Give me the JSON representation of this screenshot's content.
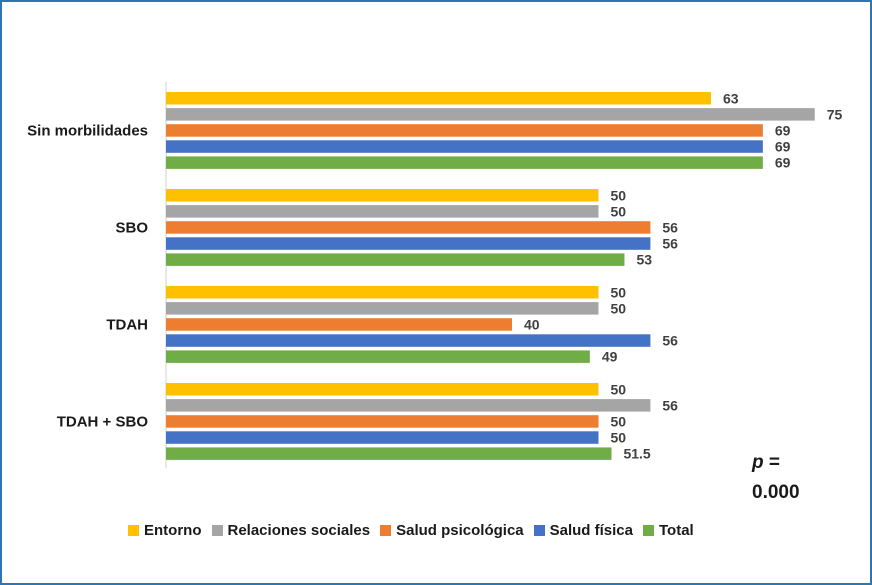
{
  "chart_data": {
    "type": "bar",
    "orientation": "horizontal",
    "title": "",
    "xlabel": "",
    "ylabel": "",
    "xlim": [
      0,
      80
    ],
    "grid": false,
    "legend_position": "bottom",
    "categories": [
      "Sin morbilidades",
      "SBO",
      "TDAH",
      "TDAH + SBO"
    ],
    "series": [
      {
        "name": "Entorno",
        "color": "#ffc000",
        "values": [
          63,
          50,
          50,
          50
        ],
        "labels": [
          "63",
          "50",
          "50",
          "50"
        ]
      },
      {
        "name": "Relaciones sociales",
        "color": "#a5a5a5",
        "values": [
          75,
          50,
          50,
          56
        ],
        "labels": [
          "75",
          "50",
          "50",
          "56"
        ]
      },
      {
        "name": "Salud psicológica",
        "color": "#ed7d31",
        "values": [
          69,
          56,
          40,
          50
        ],
        "labels": [
          "69",
          "56",
          "40",
          "50"
        ]
      },
      {
        "name": "Salud física",
        "color": "#4472c4",
        "values": [
          69,
          56,
          56,
          50
        ],
        "labels": [
          "69",
          "56",
          "56",
          "50"
        ]
      },
      {
        "name": "Total",
        "color": "#70ad47",
        "values": [
          69,
          53,
          49,
          51.5
        ],
        "labels": [
          "69",
          "53",
          "49",
          "51.5"
        ]
      }
    ]
  },
  "annotation": {
    "p_symbol": "p",
    "equals": " =",
    "value": "0.000"
  }
}
